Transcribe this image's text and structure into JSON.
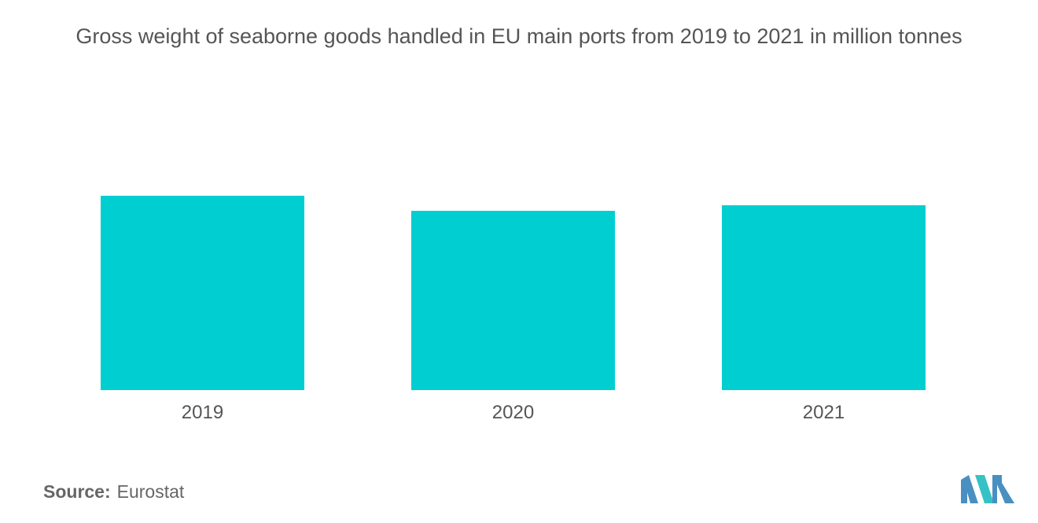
{
  "chart_data": {
    "type": "bar",
    "title": "Gross weight of seaborne goods handled in EU main ports from 2019 to 2021 in million tonnes",
    "categories": [
      "2019",
      "2020",
      "2021"
    ],
    "values": [
      3480,
      3210,
      3310
    ],
    "ylim": [
      0,
      4000
    ],
    "grid": false,
    "legend": "none",
    "bar_color": "#00CED1"
  },
  "source": {
    "label": "Source:",
    "value": "Eurostat"
  },
  "logo": {
    "icon": "mordor-intelligence-logo-icon",
    "colors": [
      "#4a8fc1",
      "#36c2c4"
    ]
  }
}
